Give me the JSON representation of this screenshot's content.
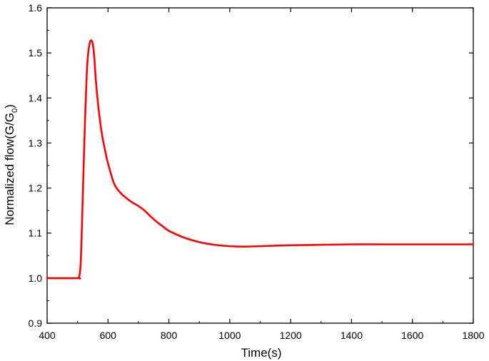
{
  "chart_data": {
    "type": "line",
    "title": "",
    "xlabel": "Time(s)",
    "ylabel": {
      "main": "Normalized flow(G/G",
      "sub": "0",
      "close": ")"
    },
    "xlim": [
      400,
      1800
    ],
    "ylim": [
      0.9,
      1.6
    ],
    "xticks": [
      "400",
      "600",
      "800",
      "1000",
      "1200",
      "1400",
      "1600",
      "1800"
    ],
    "yticks": [
      "0.9",
      "1.0",
      "1.1",
      "1.2",
      "1.3",
      "1.4",
      "1.5",
      "1.6"
    ],
    "grid": false,
    "legend": "none",
    "line_color": "#ff0000",
    "series": [
      {
        "x": [
          400,
          500,
          505,
          510,
          515,
          520,
          525,
          530,
          535,
          540,
          545,
          550,
          555,
          560,
          570,
          580,
          590,
          600,
          620,
          640,
          660,
          680,
          700,
          720,
          740,
          760,
          780,
          800,
          850,
          900,
          950,
          1000,
          1050,
          1100,
          1200,
          1300,
          1400,
          1500,
          1600,
          1700,
          1800
        ],
        "y": [
          1.0,
          1.0,
          1.002,
          1.03,
          1.13,
          1.25,
          1.36,
          1.45,
          1.5,
          1.522,
          1.528,
          1.52,
          1.49,
          1.44,
          1.37,
          1.32,
          1.285,
          1.255,
          1.21,
          1.19,
          1.178,
          1.168,
          1.16,
          1.15,
          1.137,
          1.125,
          1.115,
          1.105,
          1.09,
          1.08,
          1.074,
          1.071,
          1.07,
          1.071,
          1.073,
          1.074,
          1.075,
          1.075,
          1.075,
          1.075,
          1.075
        ]
      }
    ]
  }
}
